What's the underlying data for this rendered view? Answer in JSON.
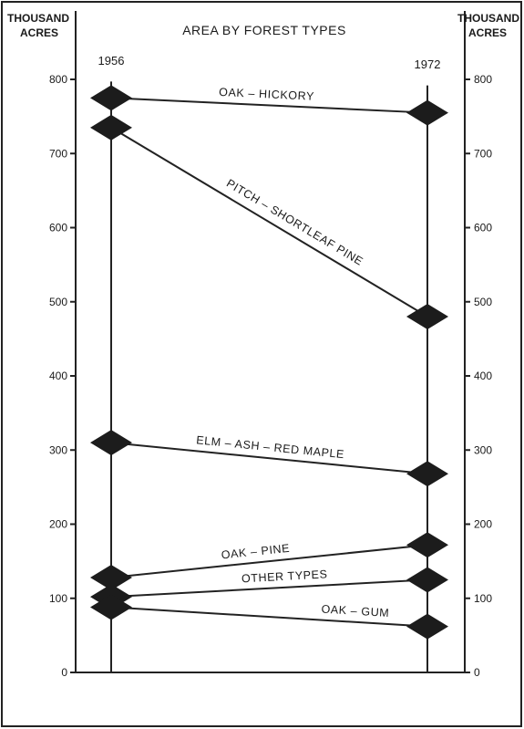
{
  "chart_data": {
    "type": "line",
    "title": "AREA BY FOREST TYPES",
    "y_unit_label_left": [
      "THOUSAND",
      "ACRES"
    ],
    "y_unit_label_right": [
      "THOUSAND",
      "ACRES"
    ],
    "x": [
      "1956",
      "1972"
    ],
    "ylim": [
      0,
      800
    ],
    "yticks": [
      0,
      100,
      200,
      300,
      400,
      500,
      600,
      700,
      800
    ],
    "grid": false,
    "series": [
      {
        "name": "OAK – HICKORY",
        "values": [
          775,
          755
        ]
      },
      {
        "name": "PITCH – SHORTLEAF PINE",
        "values": [
          735,
          480
        ]
      },
      {
        "name": "ELM – ASH – RED MAPLE",
        "values": [
          310,
          268
        ]
      },
      {
        "name": "OAK – PINE",
        "values": [
          128,
          172
        ]
      },
      {
        "name": "OTHER TYPES",
        "values": [
          102,
          125
        ]
      },
      {
        "name": "OAK – GUM",
        "values": [
          88,
          62
        ]
      }
    ]
  }
}
